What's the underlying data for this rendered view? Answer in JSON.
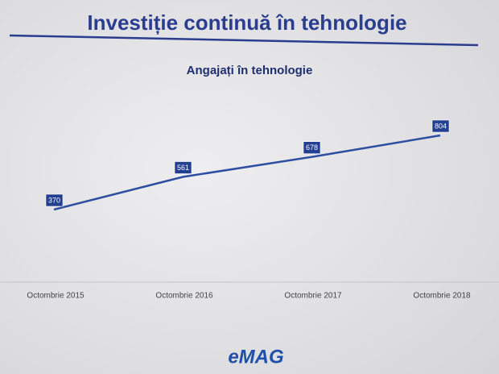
{
  "chart_data": {
    "type": "line",
    "title": "Investiție continuă în tehnologie",
    "subtitle": "Angajați în tehnologie",
    "categories": [
      "Octombrie 2015",
      "Octombrie 2016",
      "Octombrie 2017",
      "Octombrie 2018"
    ],
    "values": [
      370,
      561,
      678,
      804
    ],
    "color": "#2e4ea0",
    "logo": "eMAG"
  }
}
